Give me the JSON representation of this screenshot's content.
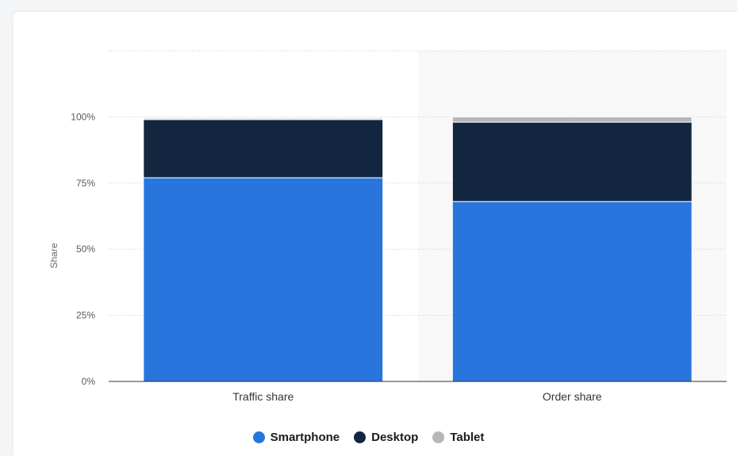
{
  "chart_data": {
    "type": "bar",
    "stacked": true,
    "categories": [
      "Traffic share",
      "Order share"
    ],
    "series": [
      {
        "name": "Smartphone",
        "color": "#2876dd",
        "values": [
          77,
          68
        ]
      },
      {
        "name": "Desktop",
        "color": "#12263f",
        "values": [
          22,
          30
        ]
      },
      {
        "name": "Tablet",
        "color": "#b7b7b7",
        "values": [
          0.5,
          2
        ]
      }
    ],
    "ylabel": "Share",
    "xlabel": "",
    "ylim": [
      0,
      125
    ],
    "yticks": [
      0,
      25,
      50,
      75,
      100
    ],
    "ytick_labels": [
      "0%",
      "25%",
      "50%",
      "75%",
      "100%"
    ],
    "grid": true,
    "legend_position": "bottom-center",
    "highlighted_category": "Order share"
  }
}
